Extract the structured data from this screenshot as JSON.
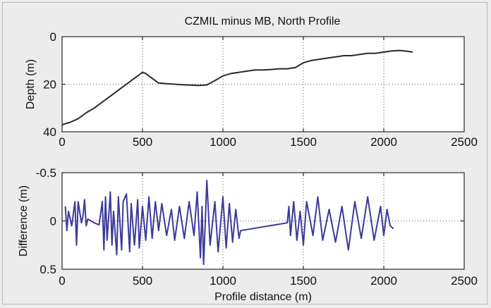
{
  "figure_background": "#ececec",
  "chart_data": [
    {
      "type": "line",
      "title": "CZMIL minus MB, North Profile",
      "xlabel": "",
      "ylabel": "Depth (m)",
      "xlim": [
        0,
        2500
      ],
      "ylim": [
        0,
        40
      ],
      "y_reversed": true,
      "xticks": [
        "0",
        "500",
        "1000",
        "1500",
        "2000",
        "2500"
      ],
      "yticks": [
        "0",
        "20",
        "40"
      ],
      "grid": true,
      "line_color": "#2a2a2a",
      "series": [
        {
          "x": [
            0,
            50,
            100,
            150,
            200,
            250,
            300,
            350,
            400,
            450,
            480,
            500,
            520,
            550,
            600,
            650,
            700,
            750,
            800,
            850,
            900,
            950,
            1000,
            1050,
            1100,
            1150,
            1200,
            1250,
            1300,
            1350,
            1400,
            1450,
            1500,
            1550,
            1600,
            1650,
            1700,
            1750,
            1800,
            1850,
            1900,
            1950,
            2000,
            2050,
            2100,
            2150,
            2180
          ],
          "y": [
            37,
            36,
            34.5,
            32,
            30,
            27.5,
            25,
            22.5,
            20,
            17.5,
            16,
            15,
            15.5,
            17,
            19.5,
            19.8,
            20,
            20.2,
            20.4,
            20.5,
            20.3,
            18.5,
            16.5,
            15.5,
            15,
            14.5,
            14,
            14,
            13.8,
            13.5,
            13.5,
            13,
            11,
            10,
            9.5,
            9,
            8.5,
            8,
            8,
            7.5,
            7,
            7,
            6.5,
            6,
            5.8,
            6.2,
            6.5
          ]
        }
      ]
    },
    {
      "type": "line",
      "title": "",
      "xlabel": "Profile distance (m)",
      "ylabel": "Difference (m)",
      "xlim": [
        0,
        2500
      ],
      "ylim": [
        -0.5,
        0.5
      ],
      "y_reversed": true,
      "xticks": [
        "0",
        "500",
        "1000",
        "1500",
        "2000",
        "2500"
      ],
      "yticks": [
        "-0.5",
        "0",
        "0.5"
      ],
      "grid": true,
      "line_color": "#3b3b9a",
      "series": [
        {
          "x": [
            20,
            30,
            40,
            60,
            80,
            90,
            100,
            120,
            130,
            140,
            150,
            160,
            180,
            200,
            230,
            250,
            260,
            270,
            280,
            300,
            310,
            320,
            340,
            350,
            370,
            380,
            400,
            420,
            430,
            450,
            470,
            480,
            500,
            520,
            540,
            560,
            580,
            600,
            620,
            650,
            680,
            700,
            730,
            760,
            790,
            820,
            840,
            860,
            870,
            880,
            900,
            920,
            950,
            970,
            1000,
            1020,
            1040,
            1060,
            1080,
            1100,
            1110,
            1400,
            1410,
            1420,
            1440,
            1460,
            1480,
            1500,
            1520,
            1560,
            1590,
            1620,
            1660,
            1700,
            1740,
            1780,
            1820,
            1860,
            1900,
            1940,
            1980,
            2000,
            2020,
            2040,
            2060
          ],
          "y": [
            -0.15,
            0.1,
            -0.1,
            0.05,
            -0.2,
            0.25,
            -0.2,
            0.02,
            -0.05,
            -0.22,
            0.05,
            -0.02,
            0,
            0.02,
            0.04,
            -0.2,
            0.3,
            -0.25,
            0.2,
            -0.3,
            0.25,
            -0.1,
            0.35,
            -0.25,
            0.3,
            -0.2,
            -0.28,
            0.32,
            -0.18,
            0.25,
            -0.22,
            0.28,
            -0.15,
            0.2,
            -0.25,
            0.18,
            -0.2,
            0.1,
            -0.18,
            0.15,
            -0.12,
            0.2,
            -0.15,
            0.18,
            -0.2,
            0.15,
            -0.3,
            0.38,
            -0.15,
            0.45,
            -0.42,
            0.25,
            -0.2,
            0.32,
            -0.25,
            0.28,
            -0.18,
            0.22,
            -0.12,
            0.18,
            0.1,
            0.02,
            -0.15,
            0.15,
            -0.2,
            0.2,
            -0.1,
            0.25,
            -0.2,
            0.15,
            -0.25,
            0.2,
            -0.12,
            0.22,
            -0.15,
            0.3,
            -0.2,
            0.18,
            -0.25,
            0.2,
            -0.15,
            0.15,
            -0.12,
            0.05,
            0.08
          ]
        }
      ]
    }
  ]
}
